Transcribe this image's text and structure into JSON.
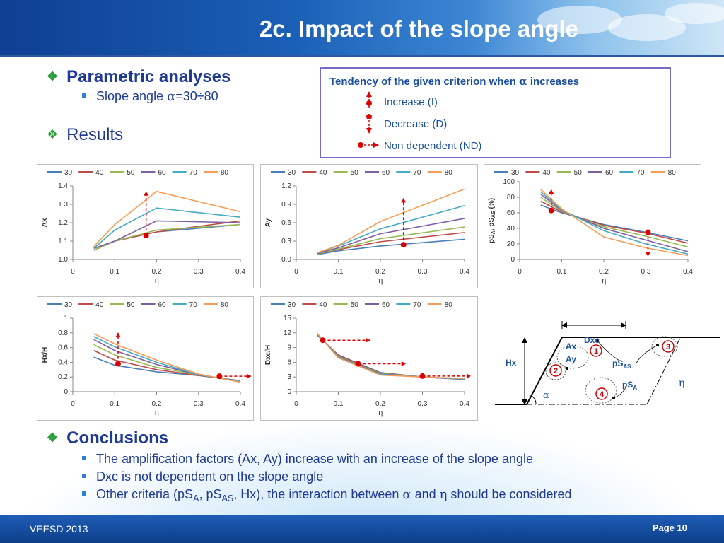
{
  "slide": {
    "title": "2c. Impact of the slope angle"
  },
  "bullets": {
    "parametric": "Parametric analyses",
    "slope_prefix": "Slope angle ",
    "alpha": "α",
    "slope_range": "=30÷80",
    "results": "Results",
    "conclusions": "Conclusions",
    "c1": "The amplification factors (Ax, Ay) increase with an increase of the slope angle",
    "c2": "Dxc is not dependent on the slope angle",
    "c3_a": "Other criteria (pS",
    "c3_sub1": "A",
    "c3_b": ", pS",
    "c3_sub2": "AS",
    "c3_c": ", Hx), the interaction between ",
    "c3_alpha": "α",
    "c3_and": " and ",
    "c3_eta": "η",
    "c3_d": " should be considered"
  },
  "tendency": {
    "title_a": "Tendency of the given criterion when ",
    "alpha": "α",
    "title_b": " increases",
    "items": [
      "Increase (I)",
      "Decrease (D)",
      "Non dependent (ND)"
    ]
  },
  "colors": {
    "series": [
      "#4a7ebb",
      "#be4b48",
      "#98b954",
      "#7d60a0",
      "#46aac5",
      "#f59d56"
    ],
    "marker": "#dd0000",
    "text_blue": "#1a4fa0"
  },
  "legend_labels": [
    "30",
    "40",
    "50",
    "60",
    "70",
    "80"
  ],
  "chart_data": [
    {
      "type": "line",
      "id": "ax",
      "ylabel": "Ax",
      "xlabel": "η",
      "xlim": [
        0,
        0.4
      ],
      "ylim": [
        1.0,
        1.4
      ],
      "xticks": [
        "0",
        "0.1",
        "0.2",
        "0.3",
        "0.4"
      ],
      "yticks": [
        "1.0",
        "1.1",
        "1.2",
        "1.3",
        "1.4"
      ],
      "x": [
        0.05,
        0.1,
        0.2,
        0.4
      ],
      "series": [
        {
          "name": "30",
          "values": [
            1.05,
            1.1,
            1.15,
            1.19
          ]
        },
        {
          "name": "40",
          "values": [
            1.05,
            1.1,
            1.15,
            1.21
          ]
        },
        {
          "name": "50",
          "values": [
            1.05,
            1.1,
            1.16,
            1.19
          ]
        },
        {
          "name": "60",
          "values": [
            1.06,
            1.1,
            1.21,
            1.2
          ]
        },
        {
          "name": "70",
          "values": [
            1.06,
            1.16,
            1.28,
            1.23
          ]
        },
        {
          "name": "80",
          "values": [
            1.07,
            1.19,
            1.37,
            1.26
          ]
        }
      ],
      "marker": {
        "x": 0.175,
        "y1": 1.13,
        "y2": 1.37,
        "dir": "up"
      }
    },
    {
      "type": "line",
      "id": "ay",
      "ylabel": "Ay",
      "xlabel": "η",
      "xlim": [
        0,
        0.4
      ],
      "ylim": [
        0,
        1.2
      ],
      "xticks": [
        "0",
        "0.1",
        "0.2",
        "0.3",
        "0.4"
      ],
      "yticks": [
        "0.0",
        "0.3",
        "0.6",
        "0.9",
        "1.2"
      ],
      "x": [
        0.05,
        0.1,
        0.2,
        0.4
      ],
      "series": [
        {
          "name": "30",
          "values": [
            0.08,
            0.14,
            0.22,
            0.33
          ]
        },
        {
          "name": "40",
          "values": [
            0.09,
            0.16,
            0.29,
            0.44
          ]
        },
        {
          "name": "50",
          "values": [
            0.09,
            0.17,
            0.34,
            0.53
          ]
        },
        {
          "name": "60",
          "values": [
            0.1,
            0.19,
            0.42,
            0.67
          ]
        },
        {
          "name": "70",
          "values": [
            0.11,
            0.22,
            0.5,
            0.88
          ]
        },
        {
          "name": "80",
          "values": [
            0.11,
            0.23,
            0.62,
            1.15
          ]
        }
      ],
      "marker": {
        "x": 0.255,
        "y1": 0.24,
        "y2": 1.0,
        "dir": "up"
      }
    },
    {
      "type": "line",
      "id": "ps",
      "ylabel": "pSA, pSAS (%)",
      "ylabel_parts": [
        "pS",
        "A",
        ", pS",
        "AS",
        " (%)"
      ],
      "xlabel": "η",
      "xlim": [
        0,
        0.4
      ],
      "ylim": [
        0,
        100
      ],
      "xticks": [
        "0",
        "0.1",
        "0.2",
        "0.3",
        "0.4"
      ],
      "yticks": [
        "0",
        "20",
        "40",
        "60",
        "80",
        "100"
      ],
      "x": [
        0.05,
        0.1,
        0.2,
        0.3,
        0.4
      ],
      "series": [
        {
          "name": "30",
          "values": [
            70,
            60,
            45,
            35,
            24
          ]
        },
        {
          "name": "40",
          "values": [
            75,
            61,
            44,
            34,
            21
          ]
        },
        {
          "name": "50",
          "values": [
            80,
            62,
            42,
            30,
            16
          ]
        },
        {
          "name": "60",
          "values": [
            84,
            63,
            40,
            25,
            10
          ]
        },
        {
          "name": "70",
          "values": [
            87,
            64,
            37,
            20,
            7
          ]
        },
        {
          "name": "80",
          "values": [
            90,
            65,
            29,
            15,
            5
          ]
        }
      ],
      "markers": [
        {
          "x": 0.075,
          "y1": 63,
          "y2": 90,
          "dir": "up"
        },
        {
          "x": 0.305,
          "y1": 35,
          "y2": 4,
          "dir": "down"
        }
      ]
    },
    {
      "type": "line",
      "id": "hx",
      "ylabel": "Hx/H",
      "xlabel": "η",
      "xlim": [
        0,
        0.4
      ],
      "ylim": [
        0,
        1
      ],
      "xticks": [
        "0",
        "0.1",
        "0.2",
        "0.3",
        "0.4"
      ],
      "yticks": [
        "0",
        "0.2",
        "0.4",
        "0.6",
        "0.8",
        "1"
      ],
      "x": [
        0.05,
        0.1,
        0.2,
        0.3,
        0.4
      ],
      "series": [
        {
          "name": "30",
          "values": [
            0.47,
            0.36,
            0.27,
            0.22,
            0.15
          ]
        },
        {
          "name": "40",
          "values": [
            0.56,
            0.43,
            0.3,
            0.22,
            0.15
          ]
        },
        {
          "name": "50",
          "values": [
            0.64,
            0.5,
            0.33,
            0.23,
            0.14
          ]
        },
        {
          "name": "60",
          "values": [
            0.71,
            0.56,
            0.37,
            0.23,
            0.14
          ]
        },
        {
          "name": "70",
          "values": [
            0.75,
            0.61,
            0.4,
            0.23,
            0.14
          ]
        },
        {
          "name": "80",
          "values": [
            0.79,
            0.65,
            0.43,
            0.24,
            0.13
          ]
        }
      ],
      "markers": [
        {
          "x": 0.108,
          "y1": 0.38,
          "y2": 0.8,
          "dir": "up"
        },
        {
          "x": 0.35,
          "y1": 0.21,
          "x2": 0.425,
          "dir": "right"
        }
      ]
    },
    {
      "type": "line",
      "id": "dxc",
      "ylabel": "Dxc/H",
      "xlabel": "η",
      "xlim": [
        0,
        0.4
      ],
      "ylim": [
        0,
        15
      ],
      "xticks": [
        "0",
        "0.1",
        "0.2",
        "0.3",
        "0.4"
      ],
      "yticks": [
        "0",
        "3",
        "6",
        "9",
        "12",
        "15"
      ],
      "x": [
        0.05,
        0.1,
        0.2,
        0.3,
        0.4
      ],
      "series": [
        {
          "name": "30",
          "values": [
            11.5,
            7.5,
            3.9,
            3.0,
            2.6
          ]
        },
        {
          "name": "40",
          "values": [
            11.6,
            7.4,
            3.8,
            3.0,
            2.5
          ]
        },
        {
          "name": "50",
          "values": [
            11.7,
            7.2,
            3.7,
            3.0,
            2.6
          ]
        },
        {
          "name": "60",
          "values": [
            11.8,
            7.1,
            3.6,
            3.0,
            2.5
          ]
        },
        {
          "name": "70",
          "values": [
            11.8,
            7.0,
            3.5,
            3.0,
            2.6
          ]
        },
        {
          "name": "80",
          "values": [
            11.9,
            6.9,
            3.4,
            3.0,
            2.7
          ]
        }
      ],
      "markers": [
        {
          "x": 0.063,
          "y1": 10.5,
          "x2": 0.175,
          "dir": "right"
        },
        {
          "x": 0.147,
          "y1": 5.7,
          "x2": 0.26,
          "dir": "right"
        },
        {
          "x": 0.3,
          "y1": 3.2,
          "x2": 0.415,
          "dir": "right"
        }
      ]
    }
  ],
  "schematic": {
    "dxc": "Dxc",
    "hx": "Hx",
    "ax": "Ax",
    "ay": "Ay",
    "psas": "pS",
    "psas_sub": "AS",
    "psa": "pS",
    "psa_sub": "A",
    "alpha": "α",
    "eta": "η",
    "zones": [
      "1",
      "2",
      "3",
      "4"
    ]
  },
  "footer": {
    "left": "VEESD 2013",
    "right": "Page 10"
  }
}
